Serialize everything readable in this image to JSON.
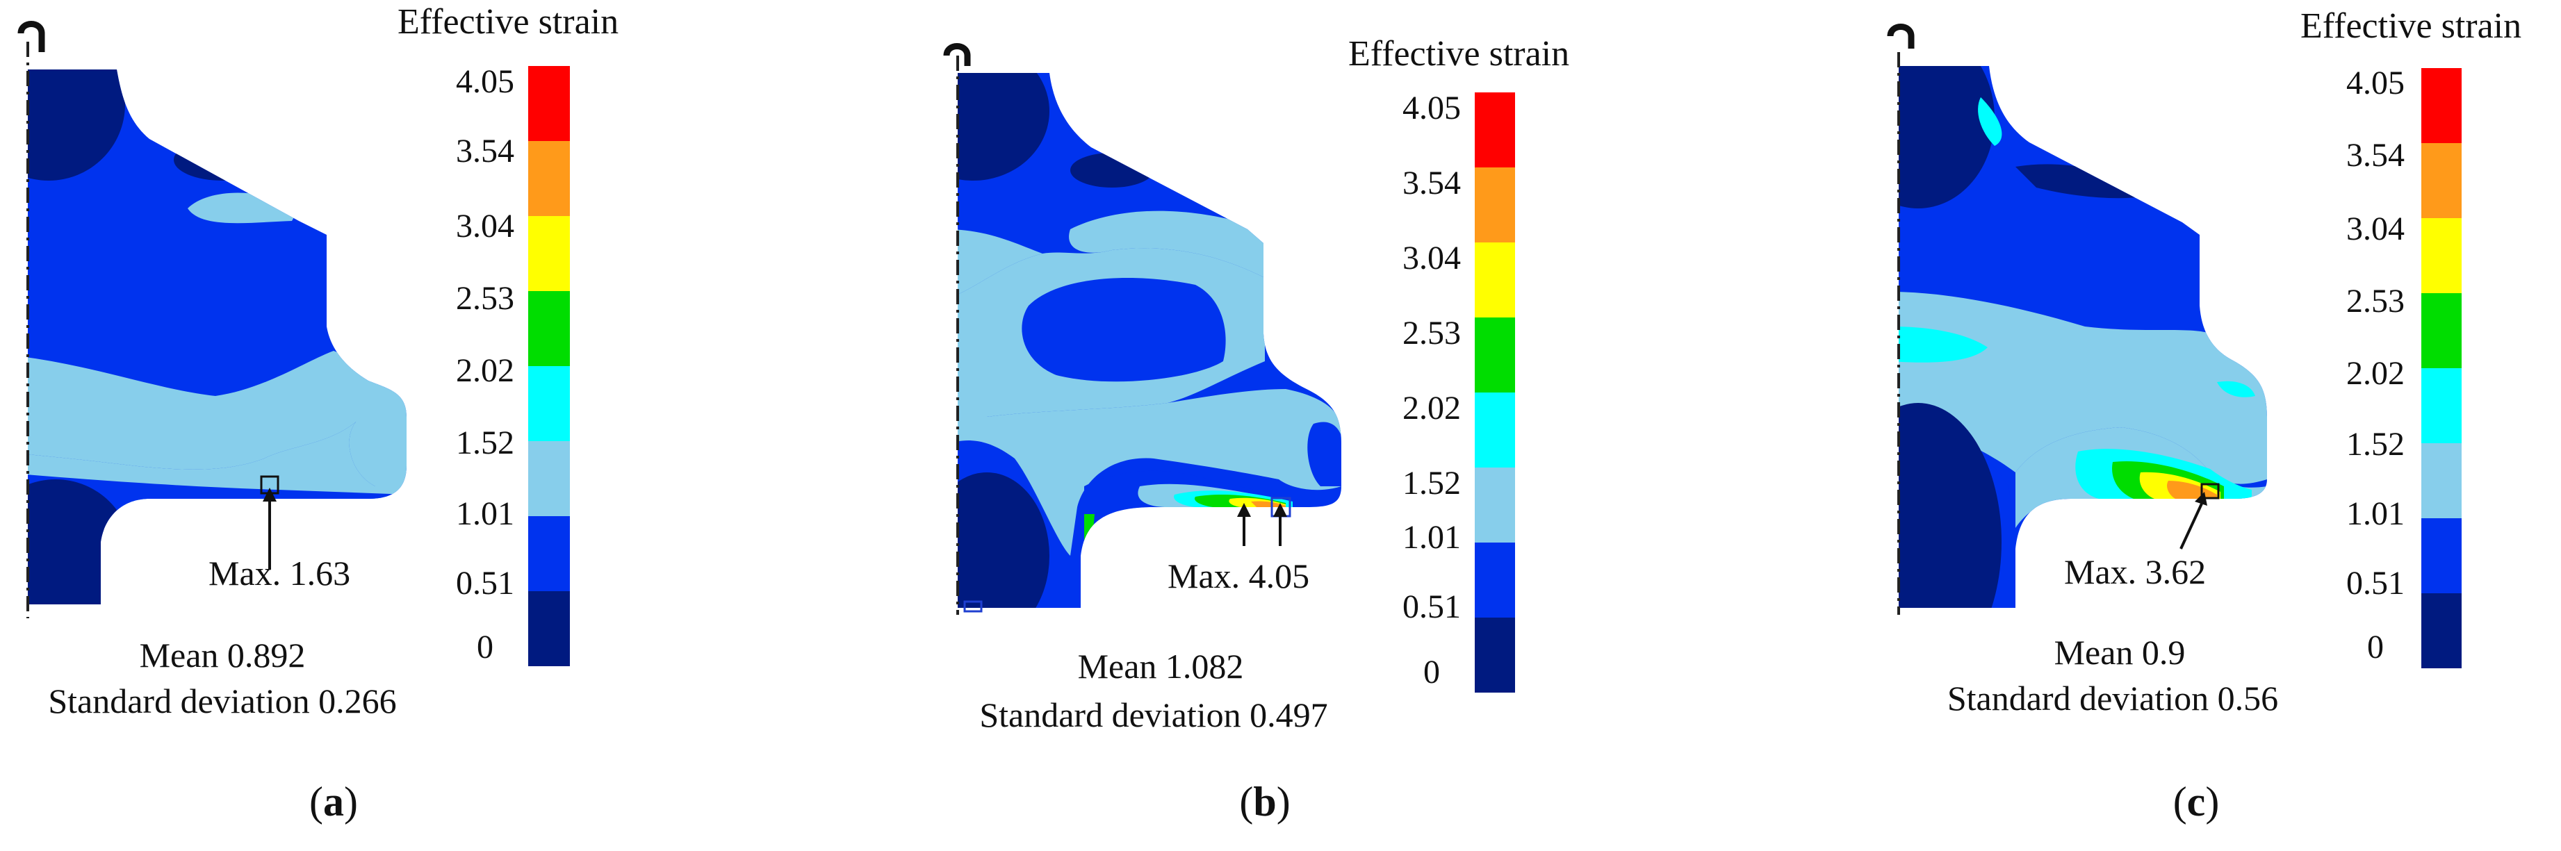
{
  "figure": {
    "colorbar": {
      "title": "Effective strain",
      "ticks": [
        "4.05",
        "3.54",
        "3.04",
        "2.53",
        "2.02",
        "1.52",
        "1.01",
        "0.51",
        "0"
      ],
      "colors": [
        "#ff0000",
        "#ff9a1a",
        "#ffff00",
        "#00dd00",
        "#00ffff",
        "#87ceeb",
        "#0033ee",
        "#001a80"
      ]
    },
    "panels": [
      {
        "label_open": "(",
        "label_letter": "a",
        "label_close": ")",
        "max": "Max. 1.63",
        "mean": "Mean 0.892",
        "std": "Standard deviation 0.266"
      },
      {
        "label_open": "(",
        "label_letter": "b",
        "label_close": ")",
        "max": "Max. 4.05",
        "mean": "Mean 1.082",
        "std": "Standard deviation 0.497"
      },
      {
        "label_open": "(",
        "label_letter": "c",
        "label_close": ")",
        "max": "Max. 3.62",
        "mean": "Mean 0.9",
        "std": "Standard deviation 0.56"
      }
    ]
  }
}
